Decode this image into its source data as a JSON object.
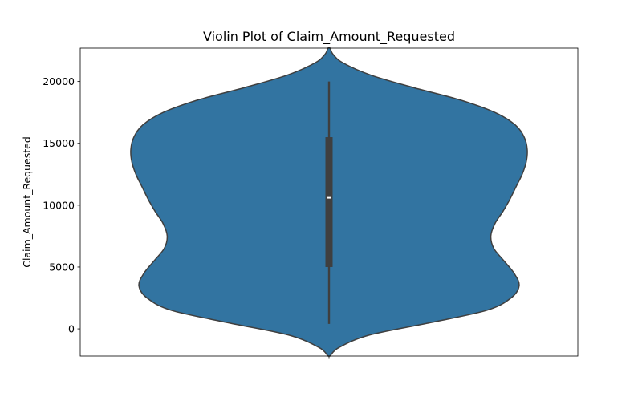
{
  "chart_data": {
    "type": "violin",
    "title": "Violin Plot of Claim_Amount_Requested",
    "xlabel": "",
    "ylabel": "Claim_Amount_Requested",
    "ylim": [
      -2200,
      22700
    ],
    "yticks": [
      0,
      5000,
      10000,
      15000,
      20000
    ],
    "yticklabels": [
      "0",
      "5000",
      "10000",
      "15000",
      "20000"
    ],
    "xticks": [
      ""
    ],
    "fill_color": "#3274a1",
    "edge_color": "#3f3f3f",
    "grid": false,
    "density_profile": [
      {
        "y": -2200,
        "half_width": 0.005
      },
      {
        "y": -1500,
        "half_width": 0.05
      },
      {
        "y": -500,
        "half_width": 0.2
      },
      {
        "y": 500,
        "half_width": 0.5
      },
      {
        "y": 1500,
        "half_width": 0.78
      },
      {
        "y": 2500,
        "half_width": 0.9
      },
      {
        "y": 3500,
        "half_width": 0.94
      },
      {
        "y": 4500,
        "half_width": 0.915
      },
      {
        "y": 5500,
        "half_width": 0.865
      },
      {
        "y": 6500,
        "half_width": 0.815
      },
      {
        "y": 7500,
        "half_width": 0.8
      },
      {
        "y": 8500,
        "half_width": 0.82
      },
      {
        "y": 9500,
        "half_width": 0.86
      },
      {
        "y": 10500,
        "half_width": 0.895
      },
      {
        "y": 11500,
        "half_width": 0.925
      },
      {
        "y": 12500,
        "half_width": 0.955
      },
      {
        "y": 13500,
        "half_width": 0.975
      },
      {
        "y": 14500,
        "half_width": 0.98
      },
      {
        "y": 15500,
        "half_width": 0.965
      },
      {
        "y": 16500,
        "half_width": 0.92
      },
      {
        "y": 17500,
        "half_width": 0.82
      },
      {
        "y": 18500,
        "half_width": 0.65
      },
      {
        "y": 19500,
        "half_width": 0.42
      },
      {
        "y": 20500,
        "half_width": 0.21
      },
      {
        "y": 21500,
        "half_width": 0.07
      },
      {
        "y": 22200,
        "half_width": 0.02
      },
      {
        "y": 22700,
        "half_width": 0.005
      }
    ],
    "box": {
      "whisker_low": 400,
      "q1": 5000,
      "median": 10600,
      "q3": 15500,
      "whisker_high": 20000
    }
  }
}
